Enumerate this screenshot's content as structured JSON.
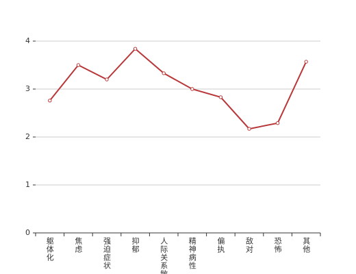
{
  "chart_data": {
    "type": "line",
    "categories": [
      "躯体化",
      "焦虑",
      "强迫症状",
      "抑郁",
      "人际关系敏感",
      "精神病性",
      "偏执",
      "敌对",
      "恐怖",
      "其他"
    ],
    "series": [
      {
        "color": "#b8373a",
        "values": [
          2.76,
          3.5,
          3.2,
          3.84,
          3.33,
          3.0,
          2.83,
          2.17,
          2.29,
          3.57
        ]
      }
    ],
    "ylim": [
      0,
      4
    ],
    "yticks": [
      0,
      1,
      2,
      3,
      4
    ],
    "grid": true
  }
}
